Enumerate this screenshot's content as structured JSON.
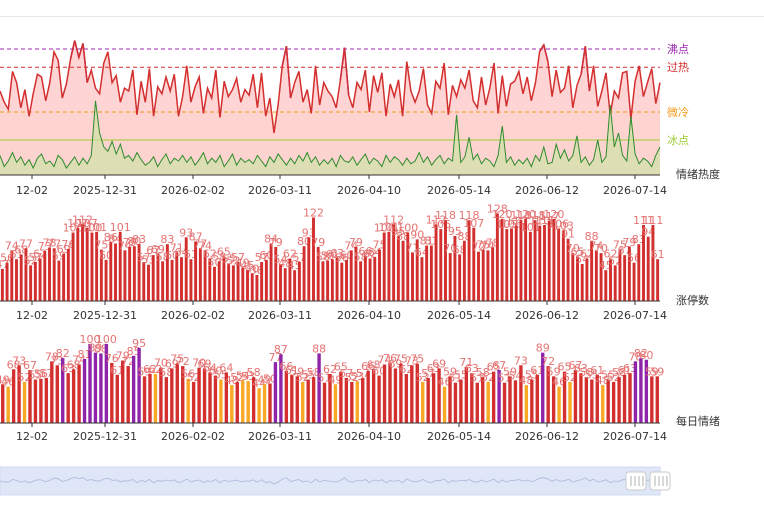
{
  "chart_data": [
    {
      "type": "line",
      "name": "heat-panel",
      "label": "情绪热度",
      "ylim": [
        0,
        100
      ],
      "threshold_lines": [
        {
          "label": "沸点",
          "value": 90,
          "color": "#9c27b0"
        },
        {
          "label": "过热",
          "value": 77,
          "color": "#d32f2f"
        },
        {
          "label": "微冷",
          "value": 45,
          "color": "#ef9a1a"
        },
        {
          "label": "冰点",
          "value": 25,
          "color": "#9acd32"
        }
      ],
      "x_ticks": [
        "12-02",
        "2025-12-31",
        "2026-02-02",
        "2026-03-11",
        "2026-04-10",
        "2026-05-14",
        "2026-06-12",
        "2026-07-14"
      ],
      "series": [
        {
          "values": [
            60,
            52,
            47,
            74,
            66,
            48,
            61,
            42,
            58,
            72,
            70,
            53,
            66,
            88,
            82,
            55,
            65,
            83,
            96,
            84,
            94,
            66,
            75,
            62,
            58,
            80,
            88,
            66,
            71,
            52,
            62,
            60,
            75,
            43,
            67,
            52,
            76,
            42,
            63,
            58,
            70,
            60,
            72,
            42,
            56,
            78,
            52,
            63,
            70,
            44,
            62,
            55,
            75,
            41,
            67,
            56,
            61,
            69,
            52,
            61,
            57,
            72,
            48,
            73,
            42,
            55,
            30,
            50,
            78,
            92,
            55,
            66,
            74,
            52,
            61,
            44,
            78,
            50,
            66,
            60,
            56,
            48,
            68,
            91,
            57,
            48,
            66,
            61,
            75,
            45,
            71,
            59,
            73,
            42,
            65,
            56,
            68,
            42,
            81,
            60,
            52,
            60,
            76,
            50,
            44,
            67,
            62,
            80,
            43,
            64,
            56,
            68,
            62,
            75,
            53,
            48,
            70,
            50,
            62,
            80,
            44,
            71,
            49,
            65,
            67,
            74,
            58,
            70,
            53,
            66,
            88,
            93,
            81,
            56,
            75,
            59,
            62,
            78,
            48,
            64,
            72,
            92,
            60,
            78,
            49,
            60,
            73,
            43,
            60,
            55,
            73,
            74,
            40,
            67,
            78,
            56,
            66,
            76,
            51,
            66
          ]
        },
        {
          "values": [
            14,
            6,
            10,
            16,
            9,
            13,
            7,
            11,
            5,
            12,
            15,
            8,
            10,
            6,
            14,
            11,
            5,
            9,
            13,
            7,
            12,
            8,
            14,
            53,
            30,
            20,
            17,
            24,
            15,
            22,
            12,
            14,
            10,
            16,
            11,
            7,
            9,
            13,
            6,
            11,
            15,
            8,
            12,
            10,
            14,
            9,
            13,
            7,
            11,
            16,
            8,
            12,
            9,
            14,
            6,
            10,
            15,
            7,
            12,
            9,
            11,
            8,
            14,
            10,
            6,
            13,
            9,
            15,
            11,
            7,
            12,
            8,
            14,
            10,
            16,
            9,
            13,
            7,
            11,
            8,
            12,
            6,
            14,
            10,
            9,
            13,
            7,
            11,
            15,
            8,
            12,
            10,
            6,
            14,
            9,
            13,
            11,
            7,
            12,
            8,
            10,
            16,
            9,
            13,
            7,
            11,
            14,
            8,
            12,
            10,
            43,
            9,
            13,
            27,
            11,
            15,
            8,
            12,
            10,
            6,
            14,
            35,
            9,
            13,
            7,
            11,
            8,
            12,
            6,
            14,
            10,
            20,
            8,
            9,
            22,
            12,
            18,
            10,
            14,
            28,
            9,
            13,
            7,
            11,
            25,
            9,
            13,
            50,
            20,
            30,
            14,
            10,
            42,
            15,
            8,
            12,
            10,
            6,
            14,
            20
          ]
        }
      ]
    },
    {
      "type": "bar",
      "name": "limit-up-panel",
      "label": "涨停数",
      "x_ticks": [
        "12-02",
        "2025-12-31",
        "2026-02-02",
        "2026-03-11",
        "2026-04-10",
        "2026-05-14",
        "2026-06-12",
        "2026-07-14"
      ],
      "series": [
        {
          "values": [
            47,
            56,
            74,
            61,
            68,
            77,
            52,
            57,
            62,
            73,
            78,
            77,
            59,
            69,
            76,
            100,
            107,
            112,
            107,
            100,
            101,
            75,
            60,
            86,
            84,
            101,
            74,
            79,
            80,
            83,
            57,
            53,
            67,
            69,
            58,
            83,
            60,
            71,
            64,
            93,
            61,
            87,
            77,
            74,
            62,
            50,
            58,
            65,
            55,
            52,
            57,
            49,
            45,
            40,
            38,
            57,
            60,
            84,
            79,
            54,
            48,
            62,
            45,
            57,
            80,
            93,
            122,
            79,
            58,
            59,
            61,
            63,
            56,
            60,
            74,
            79,
            58,
            66,
            62,
            64,
            75,
            100,
            101,
            112,
            95,
            88,
            100,
            71,
            90,
            64,
            81,
            81,
            112,
            105,
            118,
            70,
            95,
            68,
            88,
            118,
            107,
            72,
            75,
            74,
            78,
            128,
            120,
            105,
            106,
            110,
            118,
            120,
            101,
            118,
            110,
            111,
            117,
            120,
            106,
            103,
            91,
            70,
            65,
            54,
            62,
            88,
            74,
            70,
            45,
            62,
            52,
            75,
            67,
            79,
            56,
            83,
            111,
            94,
            111,
            61
          ]
        }
      ]
    },
    {
      "type": "bar",
      "name": "mood-panel",
      "label": "每日情绪",
      "x_ticks": [
        "12-02",
        "2025-12-31",
        "2026-02-02",
        "2026-03-11",
        "2026-04-10",
        "2026-05-14",
        "2026-06-12",
        "2026-07-14"
      ],
      "series": [
        {
          "values": [
            49,
            46,
            68,
            73,
            52,
            67,
            55,
            56,
            57,
            78,
            73,
            82,
            63,
            68,
            74,
            81,
            100,
            89,
            88,
            100,
            76,
            61,
            79,
            72,
            85,
            95,
            59,
            62,
            62,
            70,
            58,
            69,
            75,
            72,
            56,
            52,
            70,
            69,
            64,
            60,
            55,
            64,
            48,
            52,
            54,
            53,
            58,
            44,
            49,
            50,
            77,
            87,
            66,
            61,
            59,
            52,
            55,
            58,
            88,
            51,
            62,
            49,
            65,
            57,
            52,
            53,
            57,
            66,
            68,
            60,
            74,
            76,
            69,
            75,
            62,
            73,
            75,
            52,
            57,
            63,
            69,
            46,
            59,
            51,
            55,
            71,
            63,
            51,
            58,
            52,
            65,
            67,
            51,
            59,
            54,
            73,
            48,
            55,
            61,
            89,
            72,
            59,
            46,
            65,
            52,
            67,
            63,
            58,
            55,
            61,
            48,
            55,
            52,
            58,
            61,
            63,
            78,
            82,
            80,
            59,
            59
          ]
        },
        {
          "colors": [
            "#d32f2f",
            "#f9a825",
            "#d32f2f",
            "#d32f2f",
            "#f9a825",
            "#d32f2f",
            "#d32f2f",
            "#d32f2f",
            "#d32f2f",
            "#d32f2f",
            "#d32f2f",
            "#8e24aa",
            "#d32f2f",
            "#d32f2f",
            "#d32f2f",
            "#8e24aa",
            "#8e24aa",
            "#8e24aa",
            "#8e24aa",
            "#8e24aa",
            "#d32f2f",
            "#d32f2f",
            "#d32f2f",
            "#d32f2f",
            "#8e24aa",
            "#8e24aa",
            "#d32f2f",
            "#d32f2f",
            "#f9a825",
            "#d32f2f",
            "#d32f2f",
            "#d32f2f",
            "#d32f2f",
            "#d32f2f",
            "#f9a825",
            "#d32f2f",
            "#d32f2f",
            "#d32f2f",
            "#d32f2f",
            "#d32f2f",
            "#f9a825",
            "#d32f2f",
            "#f9a825",
            "#d32f2f",
            "#f9a825",
            "#f9a825",
            "#d32f2f",
            "#f9a825",
            "#f9a825",
            "#d32f2f",
            "#8e24aa",
            "#8e24aa",
            "#d32f2f",
            "#d32f2f",
            "#d32f2f",
            "#f9a825",
            "#d32f2f",
            "#d32f2f",
            "#8e24aa",
            "#d32f2f",
            "#d32f2f",
            "#f9a825",
            "#d32f2f",
            "#d32f2f",
            "#d32f2f",
            "#f9a825",
            "#d32f2f",
            "#d32f2f",
            "#d32f2f",
            "#d32f2f",
            "#d32f2f",
            "#d32f2f",
            "#d32f2f",
            "#d32f2f",
            "#d32f2f",
            "#d32f2f",
            "#d32f2f",
            "#f9a825",
            "#d32f2f",
            "#d32f2f",
            "#d32f2f",
            "#f9a825",
            "#d32f2f",
            "#d32f2f",
            "#d32f2f",
            "#d32f2f",
            "#d32f2f",
            "#d32f2f",
            "#d32f2f",
            "#f9a825",
            "#d32f2f",
            "#8e24aa",
            "#d32f2f",
            "#d32f2f",
            "#d32f2f",
            "#d32f2f",
            "#f9a825",
            "#d32f2f",
            "#d32f2f",
            "#8e24aa",
            "#d32f2f",
            "#d32f2f",
            "#f9a825",
            "#d32f2f",
            "#f9a825",
            "#d32f2f",
            "#d32f2f",
            "#d32f2f",
            "#d32f2f",
            "#d32f2f",
            "#f9a825",
            "#d32f2f",
            "#d32f2f",
            "#d32f2f",
            "#d32f2f",
            "#d32f2f",
            "#8e24aa",
            "#8e24aa",
            "#8e24aa",
            "#d32f2f",
            "#d32f2f"
          ]
        }
      ]
    }
  ],
  "slider": {
    "handle_icon": "grip-icon",
    "range_start": 0,
    "range_end": 1
  }
}
